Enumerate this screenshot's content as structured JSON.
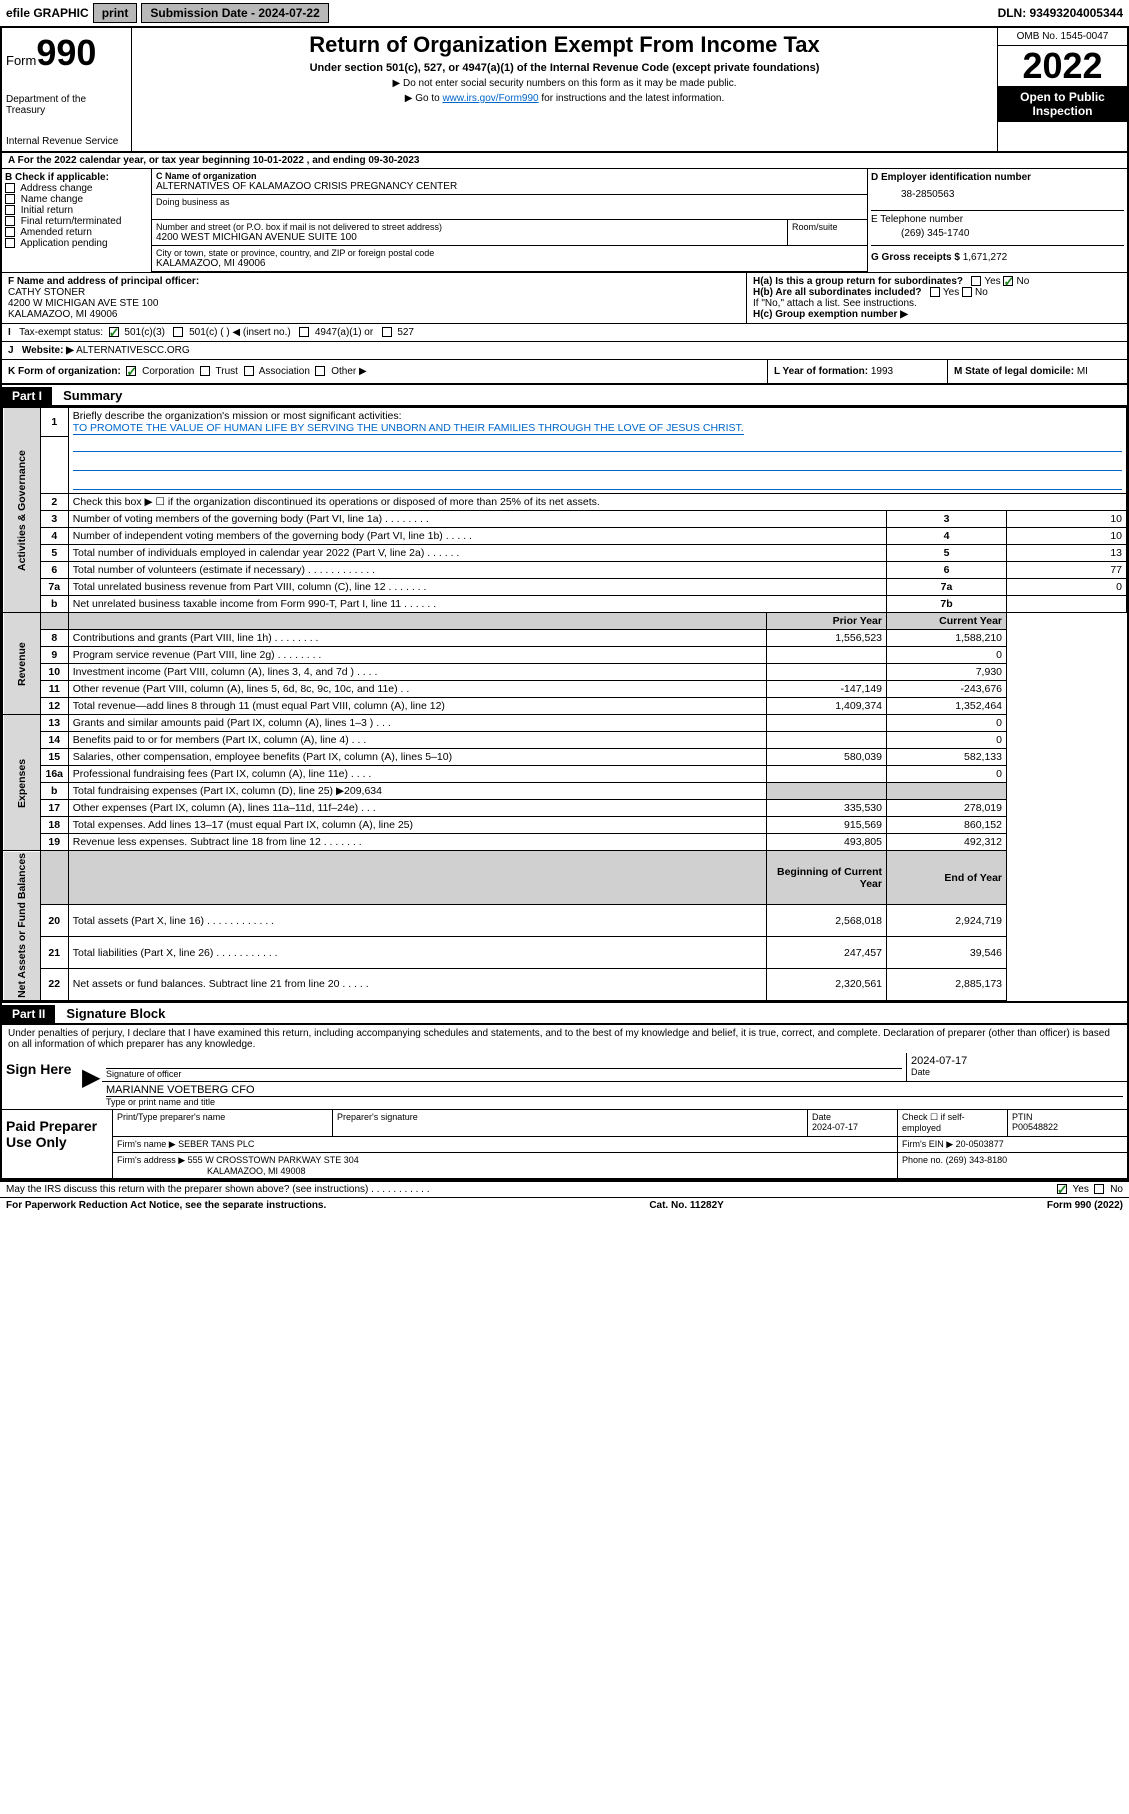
{
  "topbar": {
    "efile": "efile GRAPHIC",
    "print": "print",
    "subdate_lbl": "Submission Date - 2024-07-22",
    "dln": "DLN: 93493204005344"
  },
  "header": {
    "form": "Form",
    "num": "990",
    "dept": "Department of the Treasury",
    "irs": "Internal Revenue Service",
    "title": "Return of Organization Exempt From Income Tax",
    "sub1": "Under section 501(c), 527, or 4947(a)(1) of the Internal Revenue Code (except private foundations)",
    "sub2": "▶ Do not enter social security numbers on this form as it may be made public.",
    "sub3_pre": "▶ Go to ",
    "sub3_link": "www.irs.gov/Form990",
    "sub3_post": " for instructions and the latest information.",
    "omb": "OMB No. 1545-0047",
    "year": "2022",
    "inspect1": "Open to Public",
    "inspect2": "Inspection"
  },
  "A": {
    "text": "For the 2022 calendar year, or tax year beginning 10-01-2022    , and ending 09-30-2023"
  },
  "B": {
    "hdr": "B Check if applicable:",
    "items": [
      "Address change",
      "Name change",
      "Initial return",
      "Final return/terminated",
      "Amended return",
      "Application pending"
    ]
  },
  "C": {
    "name_lbl": "C Name of organization",
    "name": "ALTERNATIVES OF KALAMAZOO CRISIS PREGNANCY CENTER",
    "dba_lbl": "Doing business as",
    "addr_lbl": "Number and street (or P.O. box if mail is not delivered to street address)",
    "room_lbl": "Room/suite",
    "addr": "4200 WEST MICHIGAN AVENUE SUITE 100",
    "city_lbl": "City or town, state or province, country, and ZIP or foreign postal code",
    "city": "KALAMAZOO, MI  49006"
  },
  "D": {
    "lbl": "D Employer identification number",
    "val": "38-2850563"
  },
  "E": {
    "lbl": "E Telephone number",
    "val": "(269) 345-1740"
  },
  "G": {
    "lbl": "G Gross receipts $",
    "val": "1,671,272"
  },
  "F": {
    "lbl": "F Name and address of principal officer:",
    "name": "CATHY STONER",
    "addr": "4200 W MICHIGAN AVE STE 100",
    "city": "KALAMAZOO, MI  49006"
  },
  "H": {
    "a": "H(a)  Is this a group return for subordinates?",
    "b": "H(b)  Are all subordinates included?",
    "note": "If \"No,\" attach a list. See instructions.",
    "c": "H(c)  Group exemption number ▶",
    "yes": "Yes",
    "no": "No"
  },
  "I": {
    "lbl": "Tax-exempt status:",
    "opt1": "501(c)(3)",
    "opt2": "501(c) (  ) ◀ (insert no.)",
    "opt3": "4947(a)(1) or",
    "opt4": "527"
  },
  "J": {
    "lbl": "Website: ▶",
    "val": "ALTERNATIVESCC.ORG"
  },
  "K": {
    "lbl": "K Form of organization:",
    "opts": [
      "Corporation",
      "Trust",
      "Association",
      "Other ▶"
    ]
  },
  "L": {
    "lbl": "L Year of formation:",
    "val": "1993"
  },
  "M": {
    "lbl": "M State of legal domicile:",
    "val": "MI"
  },
  "part1": {
    "hdr": "Part I",
    "title": "Summary"
  },
  "summary": {
    "groups": [
      {
        "label": "Activities & Governance",
        "rows": [
          {
            "n": "1",
            "text": "Briefly describe the organization's mission or most significant activities:",
            "desc": "TO PROMOTE THE VALUE OF HUMAN LIFE BY SERVING THE UNBORN AND THEIR FAMILIES THROUGH THE LOVE OF JESUS CHRIST."
          },
          {
            "n": "2",
            "text": "Check this box ▶ ☐  if the organization discontinued its operations or disposed of more than 25% of its net assets."
          },
          {
            "n": "3",
            "text": "Number of voting members of the governing body (Part VI, line 1a)   .   .   .   .   .   .   .   .",
            "rn": "3",
            "val": "10"
          },
          {
            "n": "4",
            "text": "Number of independent voting members of the governing body (Part VI, line 1b)   .   .   .   .   .",
            "rn": "4",
            "val": "10"
          },
          {
            "n": "5",
            "text": "Total number of individuals employed in calendar year 2022 (Part V, line 2a)   .   .   .   .   .   .",
            "rn": "5",
            "val": "13"
          },
          {
            "n": "6",
            "text": "Total number of volunteers (estimate if necessary)   .   .   .   .   .   .   .   .   .   .   .   .",
            "rn": "6",
            "val": "77"
          },
          {
            "n": "7a",
            "text": "Total unrelated business revenue from Part VIII, column (C), line 12   .   .   .   .   .   .   .",
            "rn": "7a",
            "val": "0"
          },
          {
            "n": "b",
            "text": "Net unrelated business taxable income from Form 990-T, Part I, line 11   .   .   .   .   .   .",
            "rn": "7b",
            "val": ""
          }
        ]
      },
      {
        "label": "Revenue",
        "hdr1": "Prior Year",
        "hdr2": "Current Year",
        "rows": [
          {
            "n": "8",
            "text": "Contributions and grants (Part VIII, line 1h)   .   .   .   .   .   .   .   .",
            "p": "1,556,523",
            "c": "1,588,210"
          },
          {
            "n": "9",
            "text": "Program service revenue (Part VIII, line 2g)   .   .   .   .   .   .   .   .",
            "p": "",
            "c": "0"
          },
          {
            "n": "10",
            "text": "Investment income (Part VIII, column (A), lines 3, 4, and 7d )   .   .   .   .",
            "p": "",
            "c": "7,930"
          },
          {
            "n": "11",
            "text": "Other revenue (Part VIII, column (A), lines 5, 6d, 8c, 9c, 10c, and 11e)   .   .",
            "p": "-147,149",
            "c": "-243,676"
          },
          {
            "n": "12",
            "text": "Total revenue—add lines 8 through 11 (must equal Part VIII, column (A), line 12)",
            "p": "1,409,374",
            "c": "1,352,464"
          }
        ]
      },
      {
        "label": "Expenses",
        "rows": [
          {
            "n": "13",
            "text": "Grants and similar amounts paid (Part IX, column (A), lines 1–3 )   .   .   .",
            "p": "",
            "c": "0"
          },
          {
            "n": "14",
            "text": "Benefits paid to or for members (Part IX, column (A), line 4)   .   .   .",
            "p": "",
            "c": "0"
          },
          {
            "n": "15",
            "text": "Salaries, other compensation, employee benefits (Part IX, column (A), lines 5–10)",
            "p": "580,039",
            "c": "582,133"
          },
          {
            "n": "16a",
            "text": "Professional fundraising fees (Part IX, column (A), line 11e)   .   .   .   .",
            "p": "",
            "c": "0"
          },
          {
            "n": "b",
            "text": "Total fundraising expenses (Part IX, column (D), line 25) ▶209,634",
            "nofin": true
          },
          {
            "n": "17",
            "text": "Other expenses (Part IX, column (A), lines 11a–11d, 11f–24e)   .   .   .",
            "p": "335,530",
            "c": "278,019"
          },
          {
            "n": "18",
            "text": "Total expenses. Add lines 13–17 (must equal Part IX, column (A), line 25)",
            "p": "915,569",
            "c": "860,152"
          },
          {
            "n": "19",
            "text": "Revenue less expenses. Subtract line 18 from line 12   .   .   .   .   .   .   .",
            "p": "493,805",
            "c": "492,312"
          }
        ]
      },
      {
        "label": "Net Assets or Fund Balances",
        "hdr1": "Beginning of Current Year",
        "hdr2": "End of Year",
        "rows": [
          {
            "n": "20",
            "text": "Total assets (Part X, line 16)   .   .   .   .   .   .   .   .   .   .   .   .",
            "p": "2,568,018",
            "c": "2,924,719"
          },
          {
            "n": "21",
            "text": "Total liabilities (Part X, line 26)   .   .   .   .   .   .   .   .   .   .   .",
            "p": "247,457",
            "c": "39,546"
          },
          {
            "n": "22",
            "text": "Net assets or fund balances. Subtract line 21 from line 20   .   .   .   .   .",
            "p": "2,320,561",
            "c": "2,885,173"
          }
        ]
      }
    ]
  },
  "part2": {
    "hdr": "Part II",
    "title": "Signature Block"
  },
  "penalties": "Under penalties of perjury, I declare that I have examined this return, including accompanying schedules and statements, and to the best of my knowledge and belief, it is true, correct, and complete. Declaration of preparer (other than officer) is based on all information of which preparer has any knowledge.",
  "sign": {
    "here": "Sign Here",
    "sigoff": "Signature of officer",
    "date": "Date",
    "dateval": "2024-07-17",
    "name": "MARIANNE VOETBERG CFO",
    "nametype": "Type or print name and title"
  },
  "paid": {
    "title": "Paid Preparer Use Only",
    "pt_name": "Print/Type preparer's name",
    "pt_sig": "Preparer's signature",
    "pt_date": "Date",
    "pt_dateval": "2024-07-17",
    "pt_check": "Check ☐ if self-employed",
    "pt_ptin_lbl": "PTIN",
    "pt_ptin": "P00548822",
    "firm_lbl": "Firm's name    ▶",
    "firm": "SEBER TANS PLC",
    "ein_lbl": "Firm's EIN ▶",
    "ein": "20-0503877",
    "addr_lbl": "Firm's address ▶",
    "addr1": "555 W CROSSTOWN PARKWAY STE 304",
    "addr2": "KALAMAZOO, MI  49008",
    "phone_lbl": "Phone no.",
    "phone": "(269) 343-8180"
  },
  "footer": {
    "discuss": "May the IRS discuss this return with the preparer shown above? (see instructions)   .   .   .   .   .   .   .   .   .   .   .",
    "yes": "Yes",
    "no": "No",
    "paperwork": "For Paperwork Reduction Act Notice, see the separate instructions.",
    "cat": "Cat. No. 11282Y",
    "form": "Form 990 (2022)"
  }
}
